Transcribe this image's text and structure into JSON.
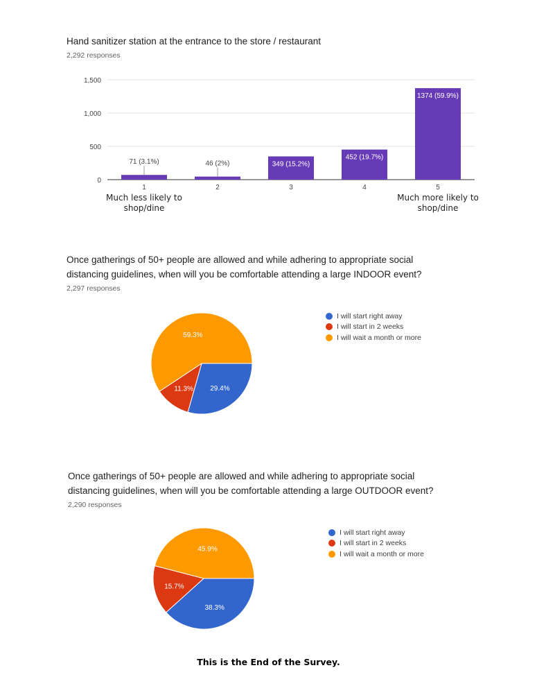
{
  "sections": [
    {
      "title": "Hand sanitizer station at the entrance to the store / restaurant",
      "responses": "2,292 responses"
    },
    {
      "title": "Once gatherings of 50+ people are allowed and while adhering to appropriate social distancing guidelines, when will you be comfortable attending a large INDOOR event?",
      "responses": "2,297 responses"
    },
    {
      "title": "Once gatherings of 50+ people are allowed and while adhering to appropriate social distancing guidelines, when will you be comfortable attending a large OUTDOOR event?",
      "responses": "2,290 responses"
    }
  ],
  "footer": "This is the End of the Survey.",
  "chart_data": [
    {
      "type": "bar",
      "categories": [
        "1",
        "2",
        "3",
        "4",
        "5"
      ],
      "category_sublabels": [
        "Much less likely to shop/dine",
        "",
        "",
        "",
        "Much more likely to shop/dine"
      ],
      "values": [
        71,
        46,
        349,
        452,
        1374
      ],
      "data_labels": [
        "71 (3.1%)",
        "46 (2%)",
        "349 (15.2%)",
        "452 (19.7%)",
        "1374 (59.9%)"
      ],
      "ylim": [
        0,
        1500
      ],
      "yticks": [
        0,
        500,
        1000,
        1500
      ],
      "ytick_labels": [
        "0",
        "500",
        "1,000",
        "1,500"
      ],
      "color": "#673ab7",
      "grid": true
    },
    {
      "type": "pie",
      "labels": [
        "I will start right away",
        "I will start in 2 weeks",
        "I will wait a month or more"
      ],
      "values": [
        29.4,
        11.3,
        59.3
      ],
      "value_labels": [
        "29.4%",
        "11.3%",
        "59.3%"
      ],
      "colors": [
        "#3366cc",
        "#dc3912",
        "#ff9900"
      ],
      "legend": "right"
    },
    {
      "type": "pie",
      "labels": [
        "I will start right away",
        "I will start in 2 weeks",
        "I will wait a month or more"
      ],
      "values": [
        38.3,
        15.7,
        45.9
      ],
      "value_labels": [
        "38.3%",
        "15.7%",
        "45.9%"
      ],
      "colors": [
        "#3366cc",
        "#dc3912",
        "#ff9900"
      ],
      "legend": "right"
    }
  ]
}
